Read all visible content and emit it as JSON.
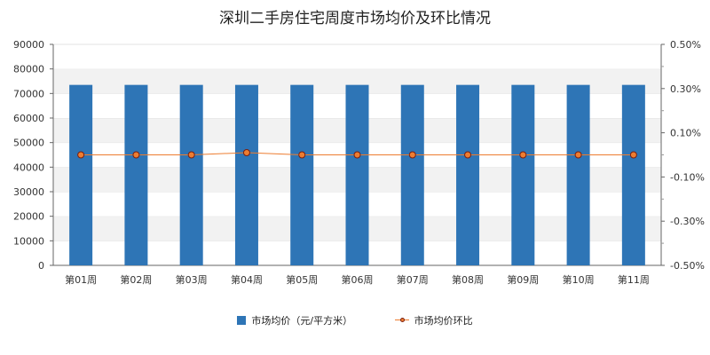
{
  "chart_data": {
    "type": "bar",
    "title": "深圳二手房住宅周度市场均价及环比情况",
    "categories": [
      "第01周",
      "第02周",
      "第03周",
      "第04周",
      "第05周",
      "第06周",
      "第07周",
      "第08周",
      "第09周",
      "第10周",
      "第11周"
    ],
    "series": [
      {
        "name": "市场均价（元/平方米）",
        "type": "bar",
        "axis": "left",
        "values": [
          73500,
          73500,
          73500,
          73500,
          73500,
          73500,
          73500,
          73500,
          73500,
          73500,
          73500
        ]
      },
      {
        "name": "市场均价环比",
        "type": "line",
        "axis": "right",
        "unit": "%",
        "values": [
          0.0,
          0.0,
          0.0,
          0.01,
          0.0,
          0.0,
          0.0,
          0.0,
          0.0,
          0.0,
          0.0
        ]
      }
    ],
    "y_left": {
      "min": 0,
      "max": 90000,
      "step": 10000,
      "ticks": [
        "0",
        "10000",
        "20000",
        "30000",
        "40000",
        "50000",
        "60000",
        "70000",
        "80000",
        "90000"
      ]
    },
    "y_right": {
      "min": -0.5,
      "max": 0.5,
      "ticks": [
        {
          "v": -0.5,
          "label": "-0.50%"
        },
        {
          "v": -0.3,
          "label": "-0.30%"
        },
        {
          "v": -0.1,
          "label": "-0.10%"
        },
        {
          "v": 0.1,
          "label": "0.10%"
        },
        {
          "v": 0.3,
          "label": "0.30%"
        },
        {
          "v": 0.5,
          "label": "0.50%"
        }
      ]
    },
    "grid": true,
    "legend_position": "bottom-center"
  },
  "colors": {
    "bar": "#2e75b6",
    "line": "#ed7d31",
    "marker": "#c0392b",
    "band": "#f2f2f2"
  }
}
